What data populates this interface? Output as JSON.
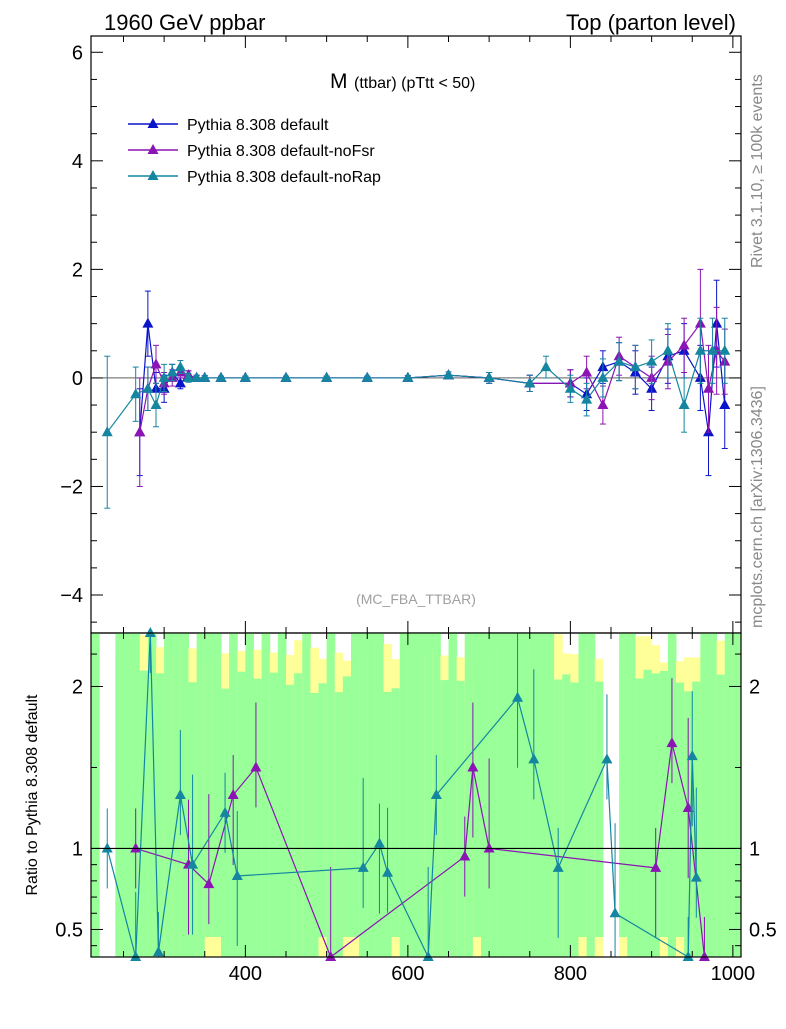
{
  "header": {
    "left": "1960 GeV ppbar",
    "right": "Top (parton level)",
    "side_rivet": "Rivet 3.1.10, ≥ 100k events",
    "side_mcplots": "mcplots.cern.ch [arXiv:1306.3436]"
  },
  "chart_data": [
    {
      "type": "line",
      "title_main": "M",
      "title_sub": "(ttbar) (pTtt < 50)",
      "watermark": "(MC_FBA_TTBAR)",
      "xlim": [
        210,
        1010
      ],
      "ylim": [
        -4.7,
        6.3
      ],
      "y_ticks": [
        -4,
        -2,
        0,
        2,
        4,
        6
      ],
      "legend_position": "top-left",
      "series": [
        {
          "name": "Pythia 8.308 default",
          "color": "#0a14c8",
          "x": [
            270,
            280,
            290,
            300,
            310,
            320,
            330,
            340,
            350,
            370,
            400,
            450,
            500,
            550,
            600,
            650,
            700,
            750,
            800,
            820,
            840,
            860,
            880,
            900,
            920,
            940,
            960,
            970,
            980,
            990
          ],
          "y": [
            -1.0,
            1.0,
            -0.2,
            -0.2,
            0.1,
            -0.1,
            0.05,
            0.0,
            0.0,
            0.0,
            0.0,
            0.0,
            0.0,
            0.0,
            0.0,
            0.05,
            0.0,
            -0.1,
            -0.1,
            -0.3,
            0.2,
            0.3,
            0.1,
            -0.2,
            0.4,
            0.5,
            0.0,
            -1.0,
            1.0,
            -0.5
          ],
          "err": [
            0.8,
            0.6,
            0.3,
            0.25,
            0.15,
            0.1,
            0.08,
            0.05,
            0.04,
            0.03,
            0.03,
            0.03,
            0.03,
            0.03,
            0.04,
            0.06,
            0.1,
            0.15,
            0.25,
            0.3,
            0.3,
            0.35,
            0.4,
            0.4,
            0.5,
            0.5,
            0.6,
            0.8,
            0.8,
            0.8
          ]
        },
        {
          "name": "Pythia 8.308 default-noFsr",
          "color": "#8c14b4",
          "x": [
            270,
            280,
            290,
            300,
            310,
            320,
            330,
            340,
            350,
            370,
            400,
            450,
            500,
            550,
            600,
            650,
            700,
            750,
            800,
            820,
            840,
            860,
            880,
            900,
            920,
            940,
            960,
            970,
            980,
            990
          ],
          "y": [
            -1.0,
            -0.2,
            0.25,
            -0.1,
            0.0,
            0.1,
            0.05,
            0.0,
            0.0,
            0.0,
            0.0,
            0.0,
            0.0,
            0.0,
            0.0,
            0.05,
            0.0,
            -0.1,
            -0.1,
            0.1,
            -0.5,
            0.4,
            0.2,
            0.0,
            0.3,
            0.6,
            1.0,
            -0.2,
            0.5,
            0.3
          ],
          "err": [
            1.0,
            0.4,
            0.35,
            0.2,
            0.15,
            0.1,
            0.08,
            0.05,
            0.04,
            0.03,
            0.03,
            0.03,
            0.03,
            0.03,
            0.04,
            0.06,
            0.1,
            0.15,
            0.25,
            0.3,
            0.35,
            0.35,
            0.4,
            0.4,
            0.5,
            0.5,
            1.0,
            0.8,
            0.8,
            0.6
          ]
        },
        {
          "name": "Pythia 8.308 default-noRap",
          "color": "#1486a0",
          "x": [
            230,
            265,
            280,
            290,
            300,
            310,
            320,
            330,
            340,
            350,
            370,
            400,
            450,
            500,
            550,
            600,
            650,
            700,
            750,
            770,
            800,
            820,
            840,
            860,
            880,
            900,
            920,
            940,
            960,
            975,
            990
          ],
          "y": [
            -1.0,
            -0.3,
            -0.2,
            -0.5,
            0.0,
            0.1,
            0.2,
            0.0,
            0.0,
            0.0,
            0.0,
            0.0,
            0.0,
            0.0,
            0.0,
            0.0,
            0.05,
            0.0,
            -0.1,
            0.2,
            -0.2,
            -0.4,
            0.0,
            0.3,
            0.2,
            0.3,
            0.5,
            -0.5,
            0.5,
            0.5,
            0.5
          ],
          "err": [
            1.4,
            0.5,
            0.4,
            0.4,
            0.25,
            0.15,
            0.12,
            0.08,
            0.05,
            0.04,
            0.03,
            0.03,
            0.03,
            0.03,
            0.03,
            0.04,
            0.06,
            0.1,
            0.15,
            0.2,
            0.25,
            0.3,
            0.35,
            0.35,
            0.4,
            0.4,
            0.5,
            0.5,
            0.6,
            0.6,
            0.6
          ]
        }
      ]
    },
    {
      "type": "line",
      "ylabel": "Ratio to Pythia 8.308 default",
      "xlim": [
        210,
        1010
      ],
      "ylim": [
        0.33,
        2.33
      ],
      "y_ticks": [
        0.5,
        1,
        2
      ],
      "x_ticks": [
        400,
        600,
        800,
        1000
      ],
      "reference_value": 1,
      "band_colors": {
        "inner": "#99ff99",
        "outer": "#ffff99"
      },
      "series": [
        {
          "name": "Pythia 8.308 default-noFsr",
          "color": "#8c14b4",
          "x": [
            265,
            330,
            355,
            385,
            413,
            505,
            670,
            680,
            700,
            905,
            925,
            945,
            965
          ],
          "y": [
            1.0,
            0.9,
            0.78,
            1.33,
            1.5,
            0.33,
            0.95,
            1.5,
            1.0,
            0.88,
            1.65,
            1.25,
            0.33
          ]
        },
        {
          "name": "Pythia 8.308 default-noRap",
          "color": "#1486a0",
          "x": [
            230,
            265,
            283,
            293,
            320,
            335,
            375,
            390,
            545,
            565,
            575,
            625,
            635,
            735,
            755,
            785,
            845,
            855,
            945,
            950,
            955
          ],
          "y": [
            1.0,
            0.33,
            2.33,
            0.36,
            1.33,
            0.9,
            1.22,
            0.83,
            0.88,
            1.03,
            0.85,
            0.33,
            1.33,
            1.93,
            1.55,
            0.88,
            1.55,
            0.6,
            0.33,
            1.57,
            0.82
          ]
        }
      ]
    }
  ]
}
